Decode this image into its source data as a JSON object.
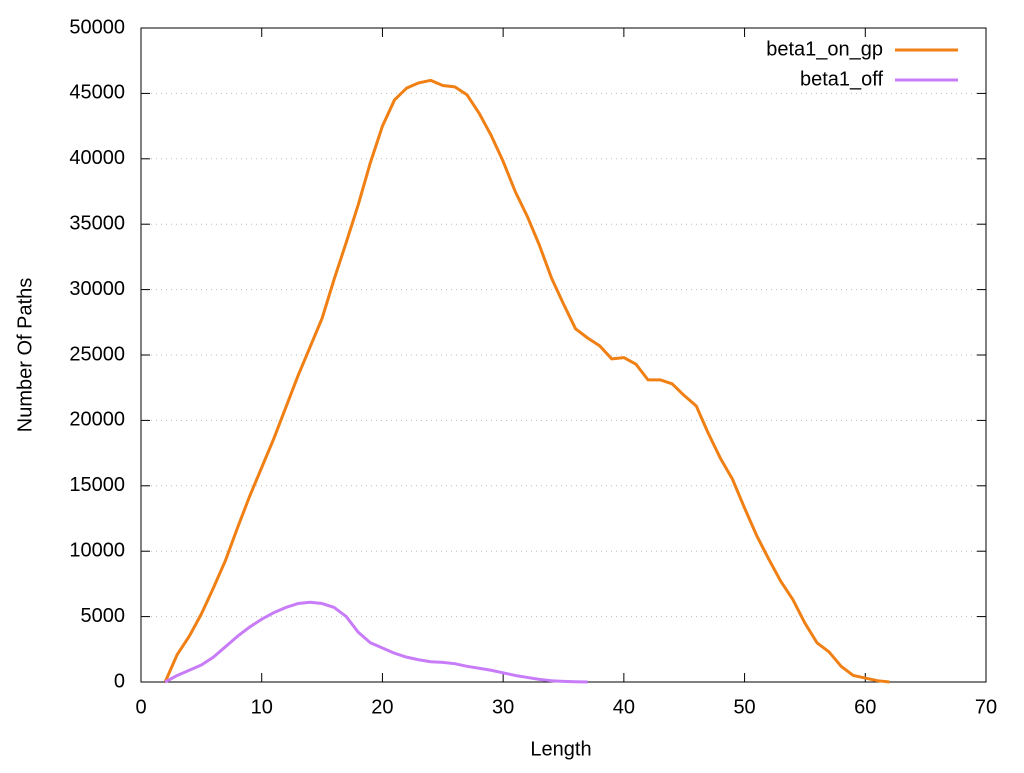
{
  "chart_data": {
    "type": "line",
    "x_label": "Length",
    "y_label": "Number Of Paths",
    "xlim": [
      0,
      70
    ],
    "xticks": [
      0,
      10,
      20,
      30,
      40,
      50,
      60,
      70
    ],
    "ylim": [
      0,
      50000
    ],
    "yticks": [
      0,
      5000,
      10000,
      15000,
      20000,
      25000,
      30000,
      35000,
      40000,
      45000,
      50000
    ],
    "grid": true,
    "legend": "top-right",
    "series": [
      {
        "name": "beta1_on_gp",
        "color": "#f07f14",
        "x": [
          2,
          3,
          4,
          5,
          6,
          7,
          8,
          9,
          10,
          11,
          12,
          13,
          14,
          15,
          16,
          17,
          18,
          19,
          20,
          21,
          22,
          23,
          24,
          25,
          26,
          27,
          28,
          29,
          30,
          31,
          32,
          33,
          34,
          35,
          36,
          37,
          38,
          39,
          40,
          41,
          42,
          43,
          44,
          45,
          46,
          47,
          48,
          49,
          50,
          51,
          52,
          53,
          54,
          55,
          56,
          57,
          58,
          59,
          60,
          61,
          62
        ],
        "values": [
          0,
          2100,
          3500,
          5200,
          7200,
          9300,
          11800,
          14200,
          16400,
          18600,
          21000,
          23400,
          25600,
          27800,
          30800,
          33600,
          36500,
          39700,
          42500,
          44500,
          45400,
          45800,
          46000,
          45600,
          45500,
          44900,
          43500,
          41800,
          39800,
          37500,
          35600,
          33400,
          30900,
          28900,
          27000,
          26300,
          25700,
          24700,
          24800,
          24300,
          23100,
          23100,
          22800,
          21900,
          21100,
          19000,
          17100,
          15500,
          13300,
          11200,
          9400,
          7700,
          6300,
          4500,
          3000,
          2300,
          1200,
          500,
          300,
          100,
          0
        ]
      },
      {
        "name": "beta1_off",
        "color": "#c87cf8",
        "x": [
          2,
          3,
          4,
          5,
          6,
          7,
          8,
          9,
          10,
          11,
          12,
          13,
          14,
          15,
          16,
          17,
          18,
          19,
          20,
          21,
          22,
          23,
          24,
          25,
          26,
          27,
          28,
          29,
          30,
          31,
          32,
          33,
          34,
          35,
          36,
          37
        ],
        "values": [
          0,
          500,
          900,
          1300,
          1900,
          2700,
          3500,
          4200,
          4800,
          5300,
          5700,
          6000,
          6100,
          6000,
          5700,
          5000,
          3800,
          3000,
          2600,
          2200,
          1900,
          1700,
          1550,
          1500,
          1400,
          1200,
          1050,
          900,
          700,
          500,
          350,
          200,
          100,
          50,
          20,
          0
        ]
      }
    ]
  }
}
